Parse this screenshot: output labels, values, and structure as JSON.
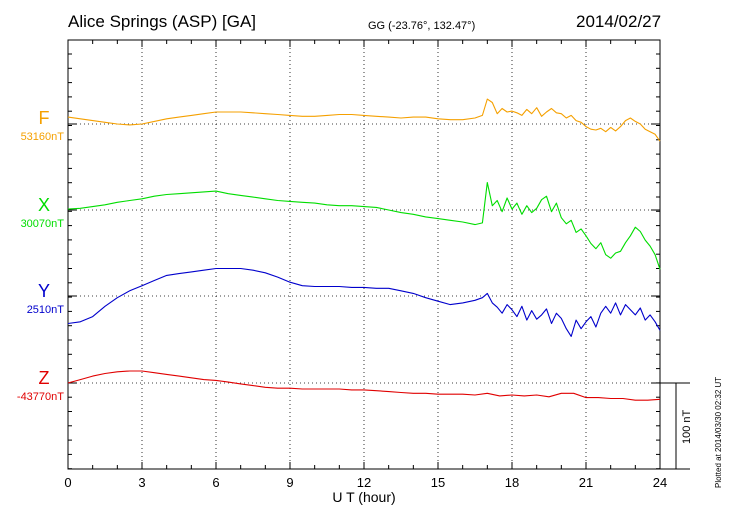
{
  "header": {
    "station": "Alice Springs (ASP)  [GA]",
    "coords": "GG (-23.76°, 132.47°)",
    "date": "2014/02/27"
  },
  "footer": {
    "plotted": "Plotted at 2014/03/30 02:32 UT"
  },
  "chart_data": {
    "type": "line",
    "xlabel": "U T (hour)",
    "xlim": [
      0,
      24
    ],
    "xticks": [
      "0",
      "3",
      "6",
      "9",
      "12",
      "15",
      "18",
      "21",
      "24"
    ],
    "scale_bar": {
      "label": "100 nT",
      "value_nT": 100
    },
    "colors": {
      "F": "#f5a000",
      "X": "#00dd00",
      "Y": "#0000cc",
      "Z": "#e00000"
    },
    "series": [
      {
        "name": "F",
        "baseline_label": "53160nT",
        "baseline_nT": 53160,
        "x": [
          0,
          0.5,
          1,
          1.5,
          2,
          2.5,
          3,
          3.5,
          4,
          4.5,
          5,
          5.5,
          6,
          6.5,
          7,
          7.5,
          8,
          8.5,
          9,
          9.5,
          10,
          10.5,
          11,
          11.5,
          12,
          12.5,
          13,
          13.5,
          14,
          14.5,
          15,
          15.5,
          16,
          16.5,
          16.8,
          17,
          17.2,
          17.4,
          17.6,
          17.8,
          18,
          18.2,
          18.4,
          18.6,
          18.8,
          19,
          19.2,
          19.4,
          19.6,
          19.8,
          20,
          20.2,
          20.4,
          20.6,
          20.8,
          21,
          21.2,
          21.4,
          21.6,
          21.8,
          22,
          22.2,
          22.4,
          22.6,
          22.8,
          23,
          23.2,
          23.4,
          23.6,
          23.8,
          24
        ],
        "y": [
          8,
          6,
          4,
          2,
          0,
          -1,
          0,
          3,
          6,
          8,
          10,
          12,
          14,
          14,
          14,
          13,
          12,
          11,
          10,
          9,
          9,
          10,
          11,
          11,
          10,
          9,
          8,
          7,
          8,
          8,
          6,
          5,
          5,
          7,
          10,
          29,
          25,
          12,
          18,
          14,
          15,
          13,
          10,
          17,
          12,
          19,
          9,
          14,
          18,
          13,
          12,
          7,
          10,
          4,
          2,
          -3,
          -6,
          -7,
          -5,
          -9,
          -4,
          -8,
          -3,
          4,
          7,
          3,
          0,
          -6,
          -9,
          -12,
          -20
        ]
      },
      {
        "name": "X",
        "baseline_label": "30070nT",
        "baseline_nT": 30070,
        "x": [
          0,
          0.5,
          1,
          1.5,
          2,
          2.5,
          3,
          3.5,
          4,
          4.5,
          5,
          5.5,
          6,
          6.5,
          7,
          7.5,
          8,
          8.5,
          9,
          9.5,
          10,
          10.5,
          11,
          11.5,
          12,
          12.5,
          13,
          13.5,
          14,
          14.5,
          15,
          15.5,
          16,
          16.5,
          16.8,
          17,
          17.2,
          17.4,
          17.6,
          17.8,
          18,
          18.2,
          18.4,
          18.6,
          18.8,
          19,
          19.2,
          19.4,
          19.6,
          19.8,
          20,
          20.2,
          20.4,
          20.6,
          20.8,
          21,
          21.2,
          21.4,
          21.6,
          21.8,
          22,
          22.2,
          22.4,
          22.6,
          22.8,
          23,
          23.2,
          23.4,
          23.6,
          23.8,
          24
        ],
        "y": [
          1,
          2,
          4,
          6,
          9,
          11,
          13,
          16,
          18,
          19,
          20,
          21,
          22,
          19,
          17,
          15,
          13,
          11,
          10,
          9,
          8,
          6,
          5,
          5,
          4,
          3,
          0,
          -3,
          -5,
          -8,
          -10,
          -12,
          -14,
          -17,
          -15,
          32,
          5,
          11,
          -2,
          14,
          1,
          8,
          -5,
          5,
          -3,
          2,
          12,
          16,
          -2,
          8,
          -9,
          -16,
          -12,
          -26,
          -22,
          -30,
          -39,
          -45,
          -38,
          -52,
          -56,
          -50,
          -48,
          -38,
          -30,
          -20,
          -25,
          -35,
          -42,
          -52,
          -69
        ]
      },
      {
        "name": "Y",
        "baseline_label": "2510nT",
        "baseline_nT": 2510,
        "x": [
          0,
          0.5,
          1,
          1.5,
          2,
          2.5,
          3,
          3.5,
          4,
          4.5,
          5,
          5.5,
          6,
          6.5,
          7,
          7.5,
          8,
          8.5,
          9,
          9.5,
          10,
          10.5,
          11,
          11.5,
          12,
          12.5,
          13,
          13.5,
          14,
          14.5,
          15,
          15.5,
          16,
          16.5,
          16.8,
          17,
          17.2,
          17.4,
          17.6,
          17.8,
          18,
          18.2,
          18.4,
          18.6,
          18.8,
          19,
          19.2,
          19.4,
          19.6,
          19.8,
          20,
          20.2,
          20.4,
          20.6,
          20.8,
          21,
          21.2,
          21.4,
          21.6,
          21.8,
          22,
          22.2,
          22.4,
          22.6,
          22.8,
          23,
          23.2,
          23.4,
          23.6,
          23.8,
          24
        ],
        "y": [
          -32,
          -30,
          -24,
          -12,
          -2,
          6,
          12,
          18,
          24,
          26,
          28,
          30,
          32,
          32,
          32,
          30,
          27,
          22,
          16,
          12,
          11,
          11,
          11,
          10,
          10,
          9,
          9,
          6,
          3,
          -2,
          -6,
          -10,
          -8,
          -5,
          -2,
          3,
          -8,
          -13,
          -20,
          -10,
          -16,
          -24,
          -12,
          -28,
          -17,
          -27,
          -22,
          -15,
          -32,
          -20,
          -26,
          -38,
          -47,
          -28,
          -38,
          -30,
          -24,
          -36,
          -20,
          -12,
          -20,
          -8,
          -22,
          -10,
          -16,
          -22,
          -14,
          -28,
          -22,
          -30,
          -40
        ]
      },
      {
        "name": "Z",
        "baseline_label": "-43770nT",
        "baseline_nT": -43770,
        "x": [
          0,
          0.5,
          1,
          1.5,
          2,
          2.5,
          3,
          3.5,
          4,
          4.5,
          5,
          5.5,
          6,
          6.5,
          7,
          7.5,
          8,
          8.5,
          9,
          9.5,
          10,
          10.5,
          11,
          11.5,
          12,
          12.5,
          13,
          13.5,
          14,
          14.5,
          15,
          15.5,
          16,
          16.5,
          17,
          17.5,
          18,
          18.5,
          19,
          19.5,
          20,
          20.5,
          21,
          21.5,
          22,
          22.5,
          23,
          23.5,
          24
        ],
        "y": [
          0,
          4,
          8,
          11,
          13,
          14,
          14,
          12,
          10,
          8,
          6,
          4,
          3,
          1,
          -1,
          -3,
          -5,
          -6,
          -6,
          -7,
          -7,
          -7,
          -7,
          -8,
          -8,
          -9,
          -10,
          -11,
          -12,
          -12,
          -13,
          -13,
          -13,
          -14,
          -12,
          -15,
          -14,
          -15,
          -14,
          -16,
          -12,
          -12,
          -17,
          -17,
          -18,
          -18,
          -20,
          -20,
          -19
        ]
      }
    ]
  }
}
